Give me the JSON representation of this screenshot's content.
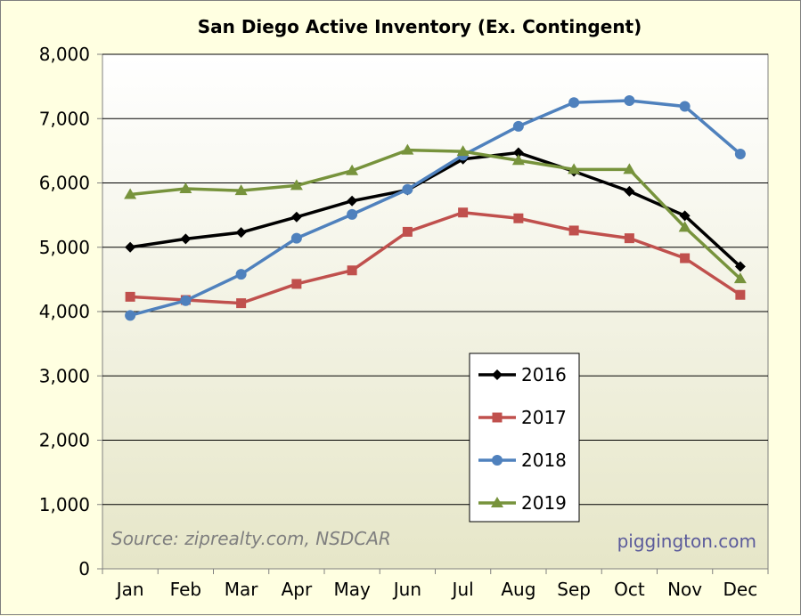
{
  "chart_data": {
    "type": "line",
    "title": "San Diego Active Inventory (Ex. Contingent)",
    "xlabel": "",
    "ylabel": "",
    "categories": [
      "Jan",
      "Feb",
      "Mar",
      "Apr",
      "May",
      "Jun",
      "Jul",
      "Aug",
      "Sep",
      "Oct",
      "Nov",
      "Dec"
    ],
    "ylim": [
      0,
      8000
    ],
    "yticks": [
      0,
      1000,
      2000,
      3000,
      4000,
      5000,
      6000,
      7000,
      8000
    ],
    "ytick_labels": [
      "0",
      "1,000",
      "2,000",
      "3,000",
      "4,000",
      "5,000",
      "6,000",
      "7,000",
      "8,000"
    ],
    "grid": "horizontal",
    "legend_position": "center-bottom",
    "series": [
      {
        "name": "2016",
        "color": "#000000",
        "marker": "diamond",
        "values": [
          5000,
          5130,
          5230,
          5470,
          5720,
          5890,
          6370,
          6470,
          6180,
          5870,
          5490,
          4700
        ]
      },
      {
        "name": "2017",
        "color": "#c0504d",
        "marker": "square",
        "values": [
          4230,
          4180,
          4130,
          4430,
          4640,
          5240,
          5540,
          5450,
          5260,
          5140,
          4830,
          4260
        ]
      },
      {
        "name": "2018",
        "color": "#4f81bd",
        "marker": "circle",
        "values": [
          3940,
          4170,
          4580,
          5140,
          5510,
          5900,
          6430,
          6880,
          7250,
          7280,
          7190,
          6450
        ]
      },
      {
        "name": "2019",
        "color": "#77933c",
        "marker": "triangle",
        "values": [
          5820,
          5910,
          5880,
          5960,
          6190,
          6510,
          6490,
          6350,
          6210,
          6210,
          5310,
          4510
        ]
      }
    ],
    "annotations": [
      "Source: ziprealty.com, NSDCAR",
      "piggington.com"
    ],
    "colors": {
      "plot_background_top": "#ffffff",
      "plot_background_bottom": "#e6e6c8",
      "page_background": "#ffffe1"
    }
  }
}
